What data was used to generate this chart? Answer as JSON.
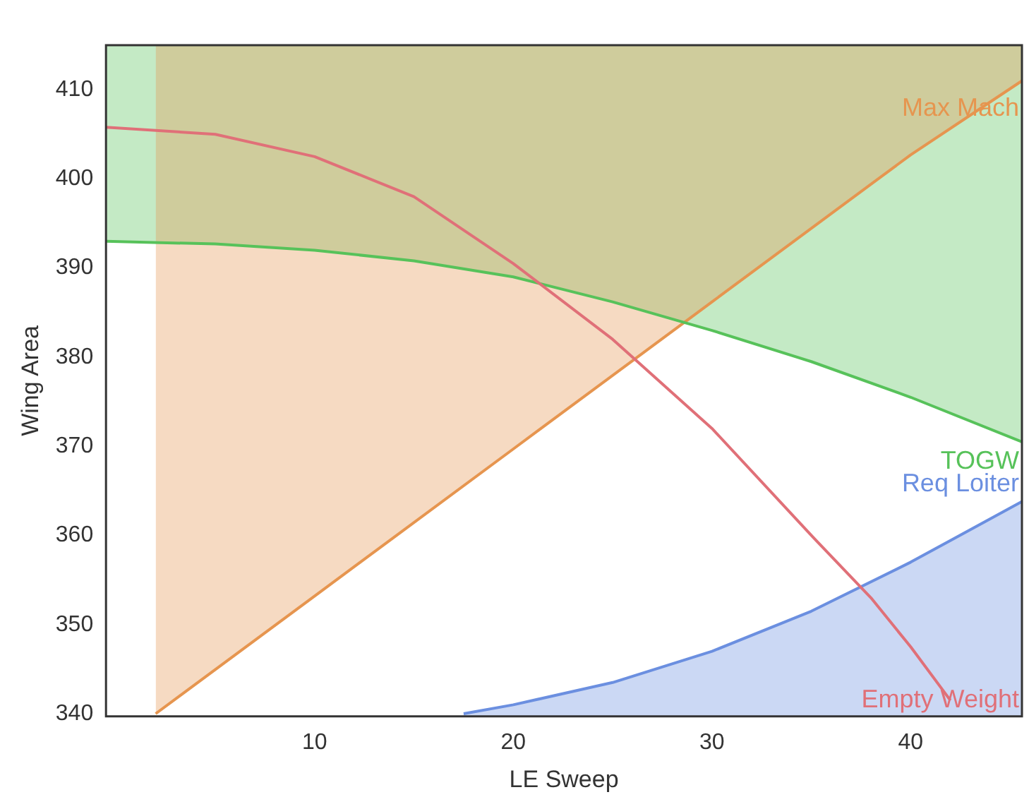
{
  "chart_data": {
    "type": "line",
    "xlabel": "LE Sweep",
    "ylabel": "Wing Area",
    "xlim": [
      -0.5,
      45.6
    ],
    "ylim": [
      339.7,
      415
    ],
    "xticks": [
      10,
      20,
      30,
      40
    ],
    "yticks": [
      340,
      350,
      360,
      370,
      380,
      390,
      400,
      410
    ],
    "grid": false,
    "legend": false,
    "marker": "none",
    "series": [
      {
        "name": "Max Mach",
        "color": "#e6954f",
        "x": [
          2,
          10,
          20,
          30,
          40,
          45.6
        ],
        "values": [
          340,
          353.2,
          369.7,
          386.2,
          402.7,
          411
        ],
        "lower": [
          340,
          353.2,
          369.7,
          386.2,
          402.7,
          411
        ],
        "upper": [
          415,
          415,
          415,
          415,
          415,
          415
        ]
      },
      {
        "name": "TOGW",
        "color": "#57c25a",
        "x": [
          -0.5,
          5,
          10,
          15,
          20,
          25,
          30,
          35,
          40,
          45.6
        ],
        "values": [
          393,
          392.7,
          392,
          390.8,
          389,
          386.2,
          383,
          379.5,
          375.5,
          370.5
        ],
        "lower": [
          393,
          392.7,
          392,
          390.8,
          389,
          386.2,
          383,
          379.5,
          375.5,
          370.5
        ],
        "upper": [
          415,
          415,
          415,
          415,
          415,
          415,
          415,
          415,
          415,
          415
        ]
      },
      {
        "name": "Req Loiter",
        "type": "area",
        "color": "#6b8fe0",
        "x": [
          17.5,
          20,
          25,
          30,
          35,
          40,
          45.6
        ],
        "values": [
          340,
          341,
          343.5,
          347,
          351.5,
          357,
          363.8
        ]
      },
      {
        "name": "Empty Weight",
        "color": "#e07078",
        "x": [
          -0.5,
          5,
          10,
          15,
          20,
          25,
          30,
          35,
          38,
          40,
          42
        ],
        "values": [
          405.8,
          405,
          402.5,
          398,
          390.5,
          382,
          372,
          360,
          353,
          347.5,
          341.5
        ]
      }
    ]
  }
}
